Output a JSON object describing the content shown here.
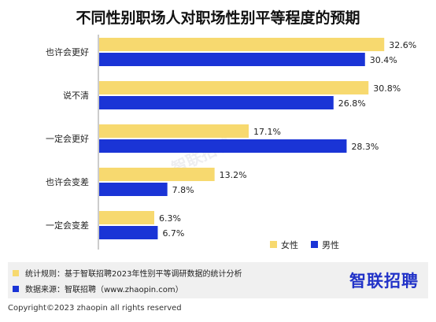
{
  "title": "不同性别职场人对职场性别平等程度的预期",
  "chart_data": {
    "type": "bar",
    "orientation": "horizontal",
    "categories": [
      "也许会更好",
      "说不清",
      "一定会更好",
      "也许会变差",
      "一定会变差"
    ],
    "series": [
      {
        "name": "女性",
        "values": [
          32.6,
          30.8,
          17.1,
          13.2,
          6.3
        ],
        "color": "#f7d96f"
      },
      {
        "name": "男性",
        "values": [
          30.4,
          26.8,
          28.3,
          7.8,
          6.7
        ],
        "color": "#1a34d6"
      }
    ],
    "value_suffix": "%",
    "xlim": [
      0,
      36
    ],
    "grid": false,
    "legend": "bottom-right"
  },
  "notes": [
    {
      "text": "统计规则：基于智联招聘2023年性别平等调研数据的统计分析",
      "color": "#f7d96f"
    },
    {
      "text": "数据来源：智联招聘（www.zhaopin.com）",
      "color": "#1a34d6"
    }
  ],
  "brand": "智联招聘",
  "watermark": "智联招聘",
  "copyright": "Copyright©2023 zhaopin all rights reserved"
}
